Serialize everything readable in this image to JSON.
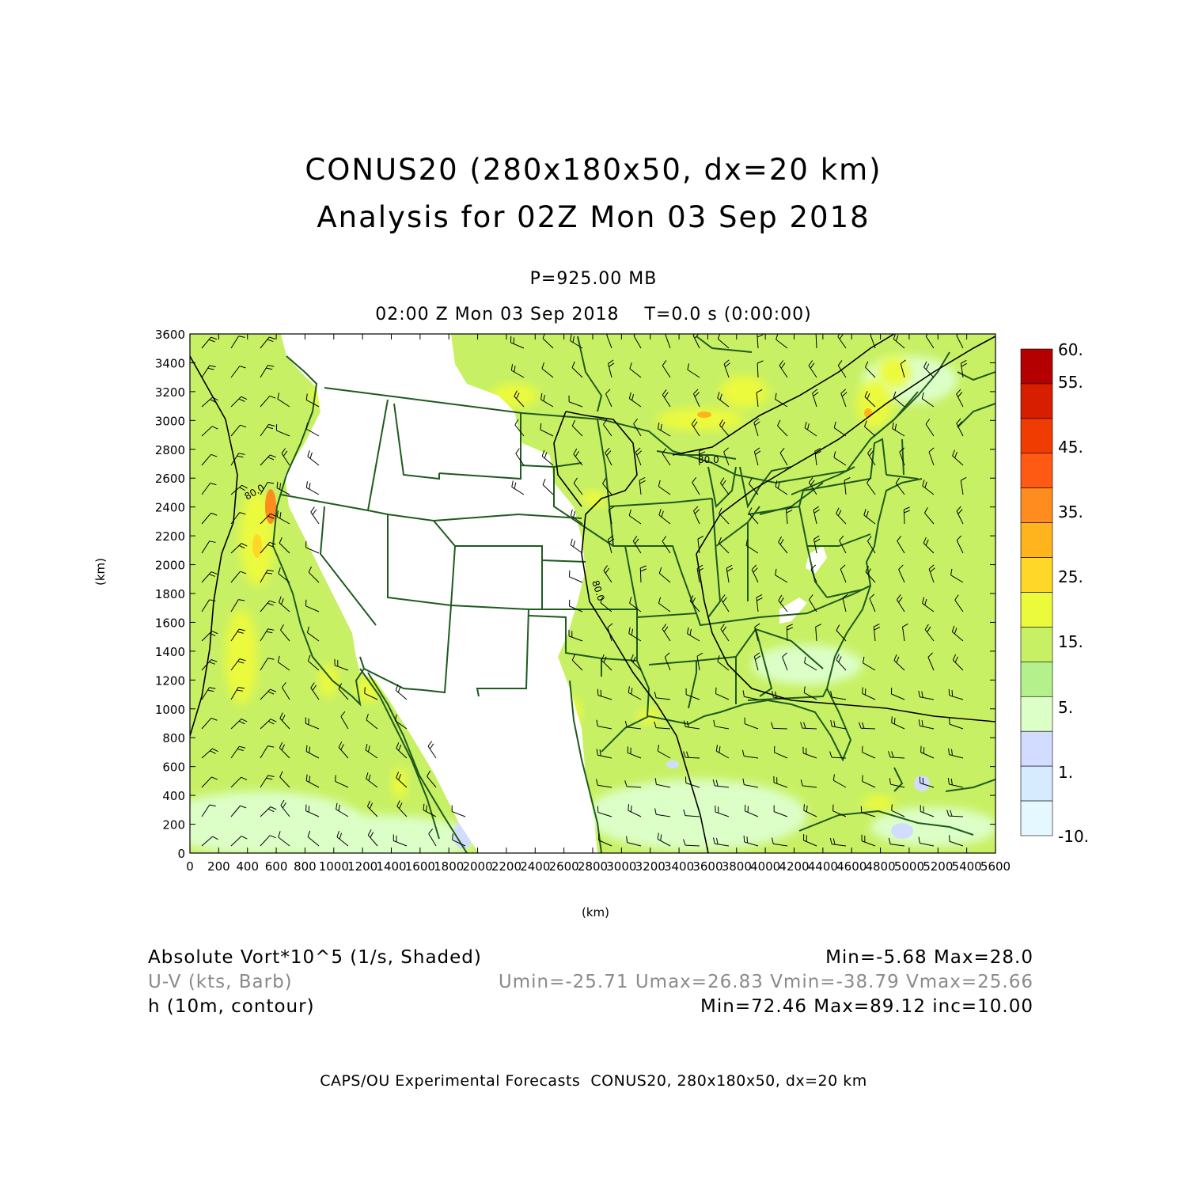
{
  "title": {
    "line1": "CONUS20 (280x180x50, dx=20 km)",
    "line2": "Analysis for 02Z Mon 03 Sep 2018"
  },
  "subtitle": {
    "level": "P=925.00 MB",
    "time": "02:00 Z Mon 03 Sep 2018    T=0.0 s (0:00:00)"
  },
  "axes": {
    "xlabel": "(km)",
    "ylabel": "(km)",
    "xlim": [
      0,
      5600
    ],
    "ylim": [
      0,
      3600
    ],
    "xticks": [
      0,
      200,
      400,
      600,
      800,
      1000,
      1200,
      1400,
      1600,
      1800,
      2000,
      2200,
      2400,
      2600,
      2800,
      3000,
      3200,
      3400,
      3600,
      3800,
      4000,
      4200,
      4400,
      4600,
      4800,
      5000,
      5200,
      5400,
      5600
    ],
    "yticks": [
      0,
      200,
      400,
      600,
      800,
      1000,
      1200,
      1400,
      1600,
      1800,
      2000,
      2200,
      2400,
      2600,
      2800,
      3000,
      3200,
      3400,
      3600
    ]
  },
  "colorbar": {
    "labels": [
      "60.",
      "55.",
      "45.",
      "35.",
      "25.",
      "15.",
      "5.",
      "1.",
      "-10."
    ],
    "colors": [
      "#b40000",
      "#d71e00",
      "#f03c00",
      "#ff5a14",
      "#ff8c1e",
      "#ffb41e",
      "#ffd728",
      "#ecfa3c",
      "#c8f064",
      "#b4f08c",
      "#dcffc8",
      "#d2dcff",
      "#d7ebff",
      "#e6f8ff"
    ]
  },
  "contours": {
    "labels": [
      "80.0",
      "80.0",
      "80.0"
    ]
  },
  "legend": {
    "vort_label": "Absolute Vort*10^5 (1/s, Shaded)",
    "vort_range": "Min=-5.68 Max=28.0",
    "wind_label": "U-V (kts, Barb)",
    "wind_range": "Umin=-25.71 Umax=26.83 Vmin=-38.79 Vmax=25.66",
    "h_label": "h (10m, contour)",
    "h_range": "Min=72.46 Max=89.12 inc=10.00"
  },
  "footer": "CAPS/OU Experimental Forecasts  CONUS20, 280x180x50, dx=20 km"
}
